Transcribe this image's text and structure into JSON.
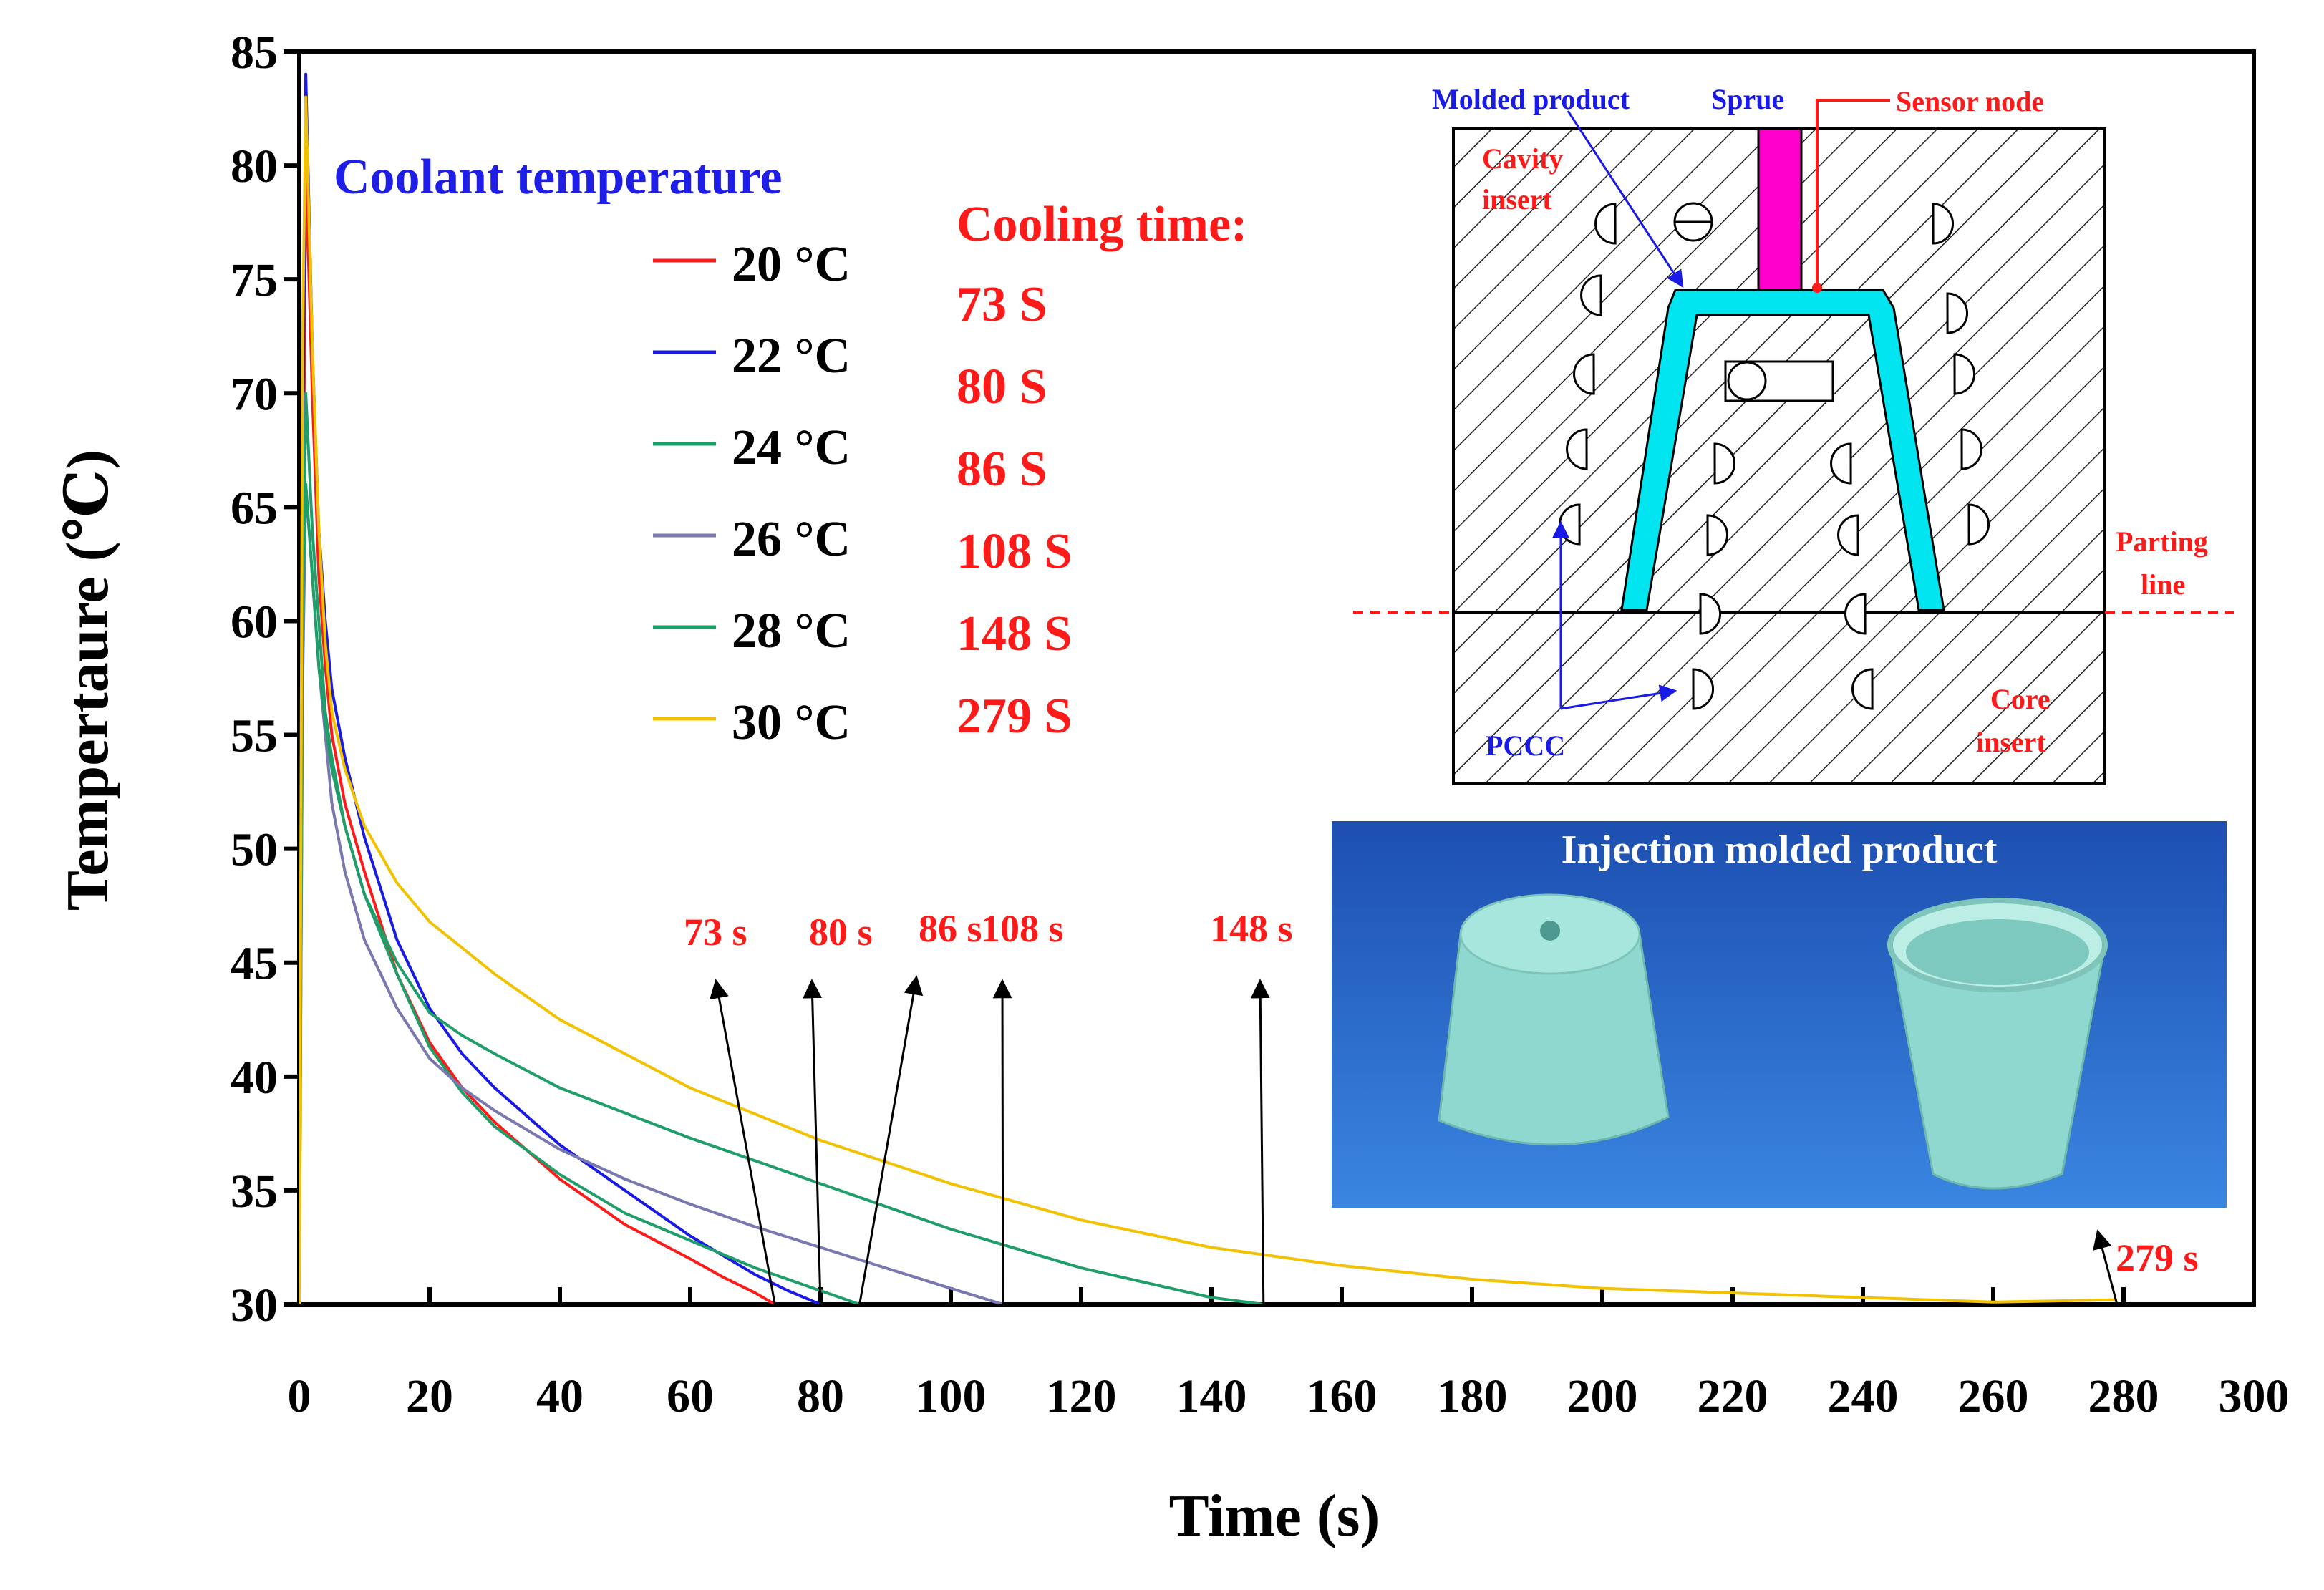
{
  "chart_data": {
    "type": "line",
    "xlabel": "Time (s)",
    "ylabel": "Tempertaure (℃)",
    "xlim": [
      0,
      300
    ],
    "ylim": [
      30,
      85
    ],
    "xticks": [
      0,
      20,
      40,
      60,
      80,
      100,
      120,
      140,
      160,
      180,
      200,
      220,
      240,
      260,
      280,
      300
    ],
    "yticks": [
      30,
      35,
      40,
      45,
      50,
      55,
      60,
      65,
      70,
      75,
      80,
      85
    ],
    "grid": false,
    "legend": {
      "title": "Coolant temperature",
      "placement": "top-left"
    },
    "series": [
      {
        "name": "20 °C",
        "color": "#ff1a1a",
        "x": [
          0,
          0.5,
          1,
          2,
          3,
          4,
          5,
          7,
          10,
          15,
          20,
          25,
          30,
          40,
          50,
          60,
          65,
          70,
          73
        ],
        "y": [
          30,
          60,
          80,
          70,
          62,
          58,
          55,
          52,
          49,
          44.5,
          41.5,
          39.5,
          38,
          35.5,
          33.5,
          32,
          31.2,
          30.5,
          30
        ]
      },
      {
        "name": "22 °C",
        "color": "#1a1ae6",
        "x": [
          0,
          0.5,
          1,
          2,
          3,
          4,
          5,
          7,
          10,
          15,
          20,
          25,
          30,
          40,
          50,
          60,
          70,
          75,
          80
        ],
        "y": [
          31,
          65,
          84,
          72,
          64,
          60,
          57,
          54,
          50.5,
          46,
          43,
          41,
          39.5,
          37,
          35,
          33,
          31.3,
          30.6,
          30
        ]
      },
      {
        "name": "24 °C",
        "color": "#1f9e6a",
        "x": [
          0,
          0.5,
          1,
          2,
          3,
          4,
          5,
          7,
          10,
          15,
          20,
          25,
          30,
          40,
          50,
          60,
          70,
          80,
          86
        ],
        "y": [
          30,
          58,
          70,
          64,
          60,
          56,
          54,
          51,
          48,
          44.5,
          41.3,
          39.3,
          37.8,
          35.7,
          34,
          32.8,
          31.6,
          30.6,
          30
        ]
      },
      {
        "name": "26 °C",
        "color": "#7a78b0",
        "x": [
          0,
          0.5,
          1,
          2,
          3,
          4,
          5,
          7,
          10,
          15,
          20,
          25,
          30,
          40,
          50,
          60,
          70,
          80,
          90,
          100,
          108
        ],
        "y": [
          31,
          57,
          66,
          62,
          58,
          55,
          52,
          49,
          46,
          43,
          40.8,
          39.5,
          38.5,
          36.8,
          35.5,
          34.4,
          33.4,
          32.5,
          31.6,
          30.7,
          30
        ]
      },
      {
        "name": "28 °C",
        "color": "#1f9e6a",
        "x": [
          0,
          0.5,
          1,
          2,
          3,
          4,
          5,
          7,
          10,
          15,
          20,
          25,
          30,
          40,
          60,
          80,
          100,
          120,
          140,
          148
        ],
        "y": [
          33,
          60,
          66,
          62,
          58,
          55.5,
          53.5,
          51,
          48,
          45,
          42.8,
          41.8,
          41,
          39.5,
          37.3,
          35.3,
          33.3,
          31.6,
          30.3,
          30
        ]
      },
      {
        "name": "30 °C",
        "color": "#f2c200",
        "x": [
          0,
          0.5,
          1,
          2,
          3,
          4,
          5,
          7,
          10,
          15,
          20,
          30,
          40,
          60,
          80,
          100,
          120,
          140,
          160,
          180,
          200,
          220,
          240,
          260,
          279
        ],
        "y": [
          30,
          72,
          83,
          72,
          64,
          59,
          56,
          53.5,
          51,
          48.5,
          46.8,
          44.5,
          42.5,
          39.5,
          37.2,
          35.3,
          33.7,
          32.5,
          31.7,
          31.1,
          30.7,
          30.5,
          30.3,
          30.1,
          30.2
        ]
      }
    ],
    "cooling_time": {
      "title": "Cooling time:",
      "values": [
        "73 S",
        "80 S",
        "86 S",
        "108 S",
        "148 S",
        "279 S"
      ]
    },
    "annotations": [
      {
        "text": "73 s",
        "x": 73
      },
      {
        "text": "80 s",
        "x": 80
      },
      {
        "text": "86 s",
        "x": 86
      },
      {
        "text": "108 s",
        "x": 108
      },
      {
        "text": "148 s",
        "x": 148
      },
      {
        "text": "279 s",
        "x": 279
      }
    ]
  },
  "diagram": {
    "molded_product": "Molded product",
    "sprue": "Sprue",
    "sensor_node": "Sensor node",
    "cavity_insert_1": "Cavity",
    "cavity_insert_2": "insert",
    "parting_line_1": "Parting",
    "parting_line_2": "line",
    "pccc": "PCCC",
    "core_insert_1": "Core",
    "core_insert_2": "insert",
    "colors": {
      "product": "#00e5f0",
      "sprue": "#ff00cc",
      "label_blue": "#1a1ae6",
      "label_red": "#ff1a1a"
    }
  },
  "photo": {
    "title": "Injection molded product",
    "colors": {
      "background": "#1d5fc0",
      "product": "#8fd8cf"
    }
  }
}
